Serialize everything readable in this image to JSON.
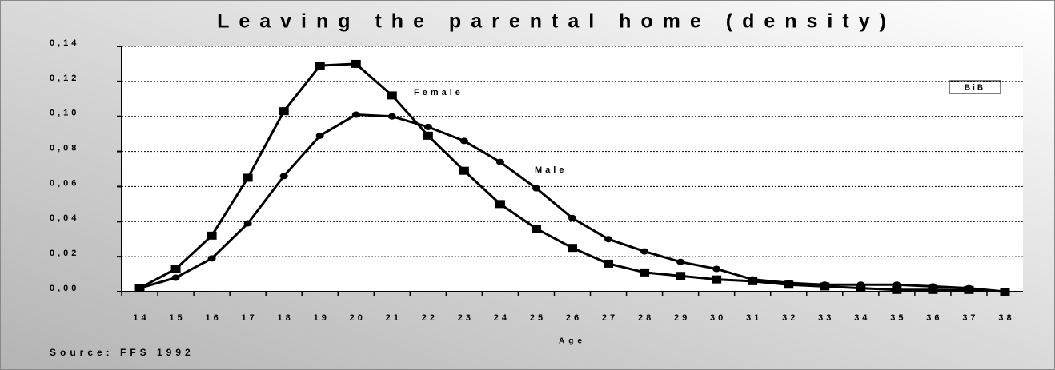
{
  "chart_data": {
    "type": "line",
    "title": "Leaving the parental home (density)",
    "x_label": "Age",
    "categories": [
      "14",
      "15",
      "16",
      "17",
      "18",
      "19",
      "20",
      "21",
      "22",
      "23",
      "24",
      "25",
      "26",
      "27",
      "28",
      "29",
      "30",
      "31",
      "32",
      "33",
      "34",
      "35",
      "36",
      "37",
      "38"
    ],
    "series": [
      {
        "name": "Female",
        "color": "#000000",
        "marker": "square",
        "values": [
          0.002,
          0.013,
          0.032,
          0.065,
          0.103,
          0.129,
          0.13,
          0.112,
          0.089,
          0.069,
          0.05,
          0.036,
          0.025,
          0.016,
          0.011,
          0.009,
          0.007,
          0.006,
          0.004,
          0.003,
          0.002,
          0.001,
          0.001,
          0.001,
          0.0
        ]
      },
      {
        "name": "Male",
        "color": "#000000",
        "marker": "circle",
        "values": [
          0.002,
          0.008,
          0.019,
          0.039,
          0.066,
          0.089,
          0.101,
          0.1,
          0.094,
          0.086,
          0.074,
          0.059,
          0.042,
          0.03,
          0.023,
          0.017,
          0.013,
          0.007,
          0.005,
          0.004,
          0.004,
          0.004,
          0.003,
          0.002,
          0.0
        ]
      }
    ],
    "ylim": [
      0,
      0.14
    ],
    "yticks": [
      {
        "value": 0,
        "label": "0,00"
      },
      {
        "value": 0.02,
        "label": "0,02"
      },
      {
        "value": 0.04,
        "label": "0,04"
      },
      {
        "value": 0.06,
        "label": "0,06"
      },
      {
        "value": 0.08,
        "label": "0,08"
      },
      {
        "value": 0.1,
        "label": "0,10"
      },
      {
        "value": 0.12,
        "label": "0,12"
      },
      {
        "value": 0.14,
        "label": "0,14"
      }
    ],
    "grid": true,
    "annotations": [
      "BiB",
      "Source: FFS 1992"
    ]
  }
}
